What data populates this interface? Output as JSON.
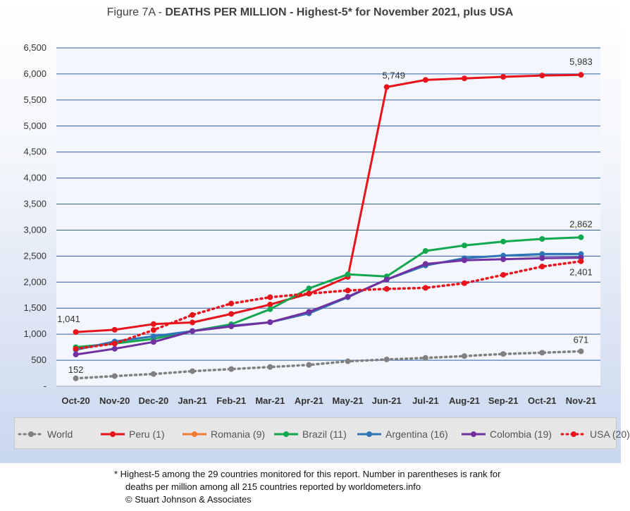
{
  "chart_data": {
    "type": "line",
    "title_prefix": "Figure 7A - ",
    "title_main": "DEATHS PER MILLION - Highest-5* for November 2021, plus USA",
    "categories": [
      "Oct-20",
      "Nov-20",
      "Dec-20",
      "Jan-21",
      "Feb-21",
      "Mar-21",
      "Apr-21",
      "May-21",
      "Jun-21",
      "Jul-21",
      "Aug-21",
      "Sep-21",
      "Oct-21",
      "Nov-21"
    ],
    "yticks": [
      "-",
      "500",
      "1,000",
      "1,500",
      "2,000",
      "2,500",
      "3,000",
      "3,500",
      "4,000",
      "4,500",
      "5,000",
      "5,500",
      "6,000",
      "6,500"
    ],
    "ylim": [
      0,
      6500
    ],
    "grid": true,
    "legend_position": "bottom",
    "series": [
      {
        "name": "World",
        "color": "#808080",
        "style": "dotted",
        "values": [
          152,
          195,
          235,
          290,
          330,
          370,
          410,
          480,
          515,
          545,
          580,
          620,
          645,
          671
        ]
      },
      {
        "name": "Peru (1)",
        "color": "#e8141c",
        "style": "solid",
        "values": [
          1041,
          1085,
          1195,
          1225,
          1390,
          1570,
          1780,
          2100,
          5749,
          5885,
          5915,
          5945,
          5970,
          5983
        ]
      },
      {
        "name": "Romania (9)",
        "color": "#ed7d31",
        "style": "solid",
        "values": [
          null,
          null,
          null,
          null,
          null,
          null,
          null,
          null,
          null,
          null,
          null,
          null,
          null,
          null
        ]
      },
      {
        "name": "Brazil (11)",
        "color": "#13a84f",
        "style": "solid",
        "values": [
          750,
          820,
          910,
          1060,
          1190,
          1480,
          1880,
          2150,
          2110,
          2600,
          2705,
          2780,
          2830,
          2862
        ]
      },
      {
        "name": "Argentina (16)",
        "color": "#2e75b6",
        "style": "solid",
        "values": [
          700,
          860,
          960,
          1060,
          1160,
          1230,
          1400,
          1710,
          2050,
          2320,
          2460,
          2510,
          2540,
          2540
        ]
      },
      {
        "name": "Colombia (19)",
        "color": "#7030a0",
        "style": "solid",
        "values": [
          610,
          720,
          850,
          1060,
          1150,
          1230,
          1430,
          1720,
          2050,
          2350,
          2420,
          2440,
          2460,
          2470
        ]
      },
      {
        "name": "USA (20)",
        "color": "#e8141c",
        "style": "dotted",
        "values": [
          720,
          820,
          1080,
          1370,
          1590,
          1710,
          1780,
          1840,
          1870,
          1890,
          1980,
          2140,
          2300,
          2401
        ]
      }
    ],
    "annotations": [
      {
        "series": "World",
        "index": 0,
        "text": "152"
      },
      {
        "series": "World",
        "index": 13,
        "text": "671"
      },
      {
        "series": "Peru (1)",
        "index": 0,
        "text": "1,041"
      },
      {
        "series": "Peru (1)",
        "index": 8,
        "text": "5,749"
      },
      {
        "series": "Peru (1)",
        "index": 13,
        "text": "5,983"
      },
      {
        "series": "Brazil (11)",
        "index": 13,
        "text": "2,862"
      },
      {
        "series": "USA (20)",
        "index": 13,
        "text": "2,401"
      }
    ]
  },
  "footnote": {
    "line1": "* Highest-5 among the 29 countries monitored for this report. Number in parentheses is rank for",
    "line2": "deaths per million among all 215 countries reported by worldometers.info",
    "line3": "© Stuart Johnson & Associates"
  }
}
